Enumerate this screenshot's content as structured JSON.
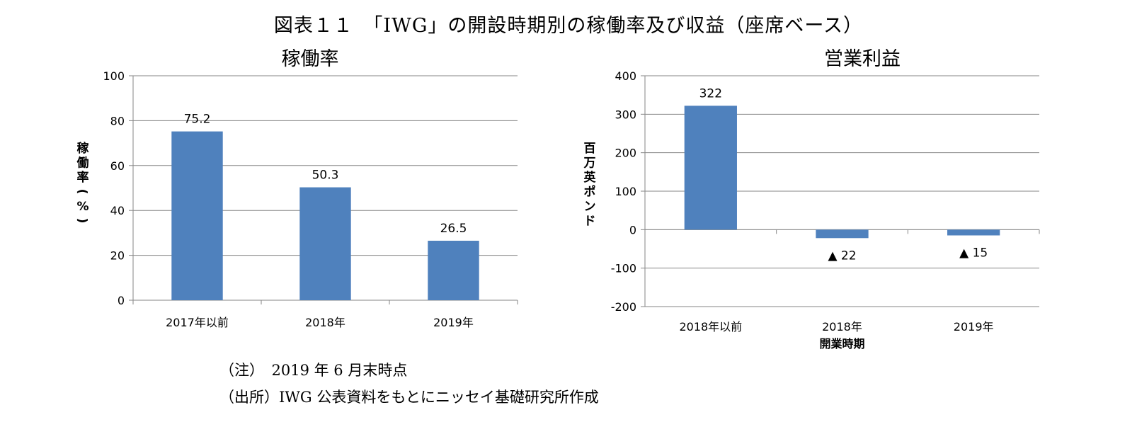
{
  "figure": {
    "title": "図表１１　「IWG」の開設時期別の稼働率及び収益（座席ベース）",
    "note": "（注）　2019 年 6 月末時点",
    "source": "（出所）IWG 公表資料をもとにニッセイ基礎研究所作成"
  },
  "chart_data": [
    {
      "type": "bar",
      "title": "稼働率",
      "ylabel": "稼働率(%)",
      "xlabel": "",
      "categories": [
        "2017年以前",
        "2018年",
        "2019年"
      ],
      "values": [
        75.2,
        50.3,
        26.5
      ],
      "value_labels": [
        "75.2",
        "50.3",
        "26.5"
      ],
      "yticks": [
        0,
        20,
        40,
        60,
        80,
        100
      ],
      "ylim": [
        0,
        100
      ],
      "grid": true,
      "legend": "none",
      "bar_color": "#4f81bd"
    },
    {
      "type": "bar",
      "title": "営業利益",
      "ylabel": "百万英ポンド",
      "xlabel": "開業時期",
      "categories": [
        "2018年以前",
        "2018年",
        "2019年"
      ],
      "values": [
        322,
        -22,
        -15
      ],
      "value_labels": [
        "322",
        "▲ 22",
        "▲ 15"
      ],
      "yticks": [
        -200,
        -100,
        0,
        100,
        200,
        300,
        400
      ],
      "ylim": [
        -200,
        400
      ],
      "grid": true,
      "legend": "none",
      "bar_color": "#4f81bd"
    }
  ]
}
